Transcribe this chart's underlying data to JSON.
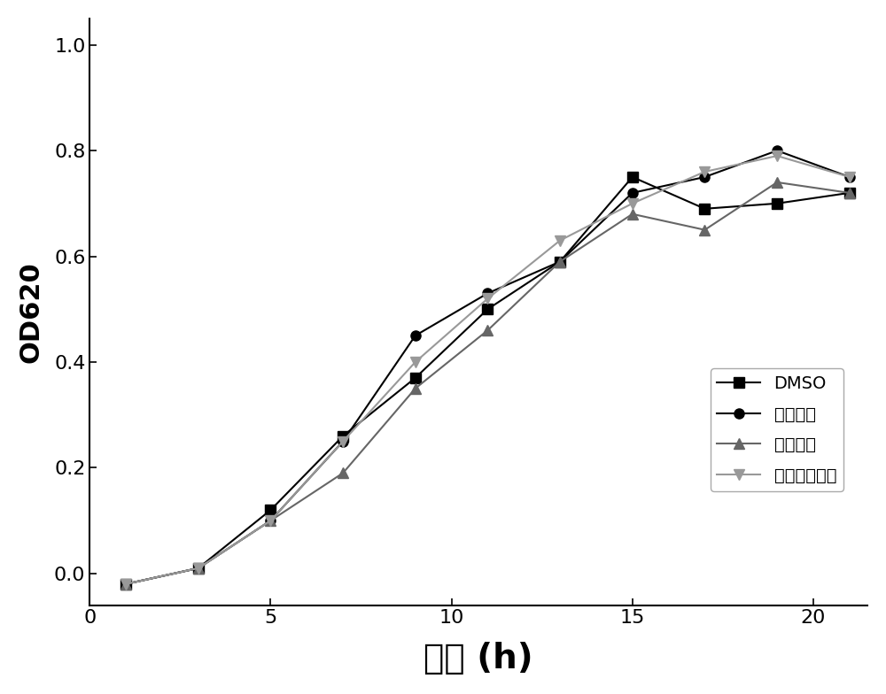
{
  "x": [
    1,
    3,
    5,
    7,
    9,
    11,
    13,
    15,
    17,
    19,
    21
  ],
  "DMSO": [
    -0.02,
    0.01,
    0.12,
    0.26,
    0.37,
    0.5,
    0.59,
    0.75,
    0.69,
    0.7,
    0.72
  ],
  "baicalein": [
    -0.02,
    0.01,
    0.1,
    0.25,
    0.45,
    0.53,
    0.59,
    0.72,
    0.75,
    0.8,
    0.75
  ],
  "pinosylvin": [
    -0.02,
    0.01,
    0.1,
    0.19,
    0.35,
    0.46,
    0.59,
    0.68,
    0.65,
    0.74,
    0.72
  ],
  "oxo_baicalein": [
    -0.02,
    0.01,
    0.1,
    0.25,
    0.4,
    0.52,
    0.63,
    0.7,
    0.76,
    0.79,
    0.75
  ],
  "labels": [
    "DMSO",
    "白荬芦醇",
    "白皮杉醇",
    "氧化白荬芦醇"
  ],
  "xlabel": "时间 (h)",
  "ylabel": "OD620",
  "xlim": [
    0,
    21.5
  ],
  "ylim": [
    -0.06,
    1.05
  ],
  "xticks": [
    0,
    5,
    10,
    15,
    20
  ],
  "yticks": [
    0.0,
    0.2,
    0.4,
    0.6,
    0.8,
    1.0
  ],
  "marker_size": 8,
  "linewidth": 1.5,
  "legend_fontsize": 14,
  "axis_label_fontsize": 22,
  "xlabel_fontsize": 28,
  "tick_fontsize": 16,
  "background_color": "#ffffff",
  "series_colors": [
    "#000000",
    "#000000",
    "#666666",
    "#999999"
  ],
  "series_lcolors": [
    "#000000",
    "#000000",
    "#666666",
    "#999999"
  ],
  "markers": [
    "s",
    "o",
    "^",
    "v"
  ]
}
